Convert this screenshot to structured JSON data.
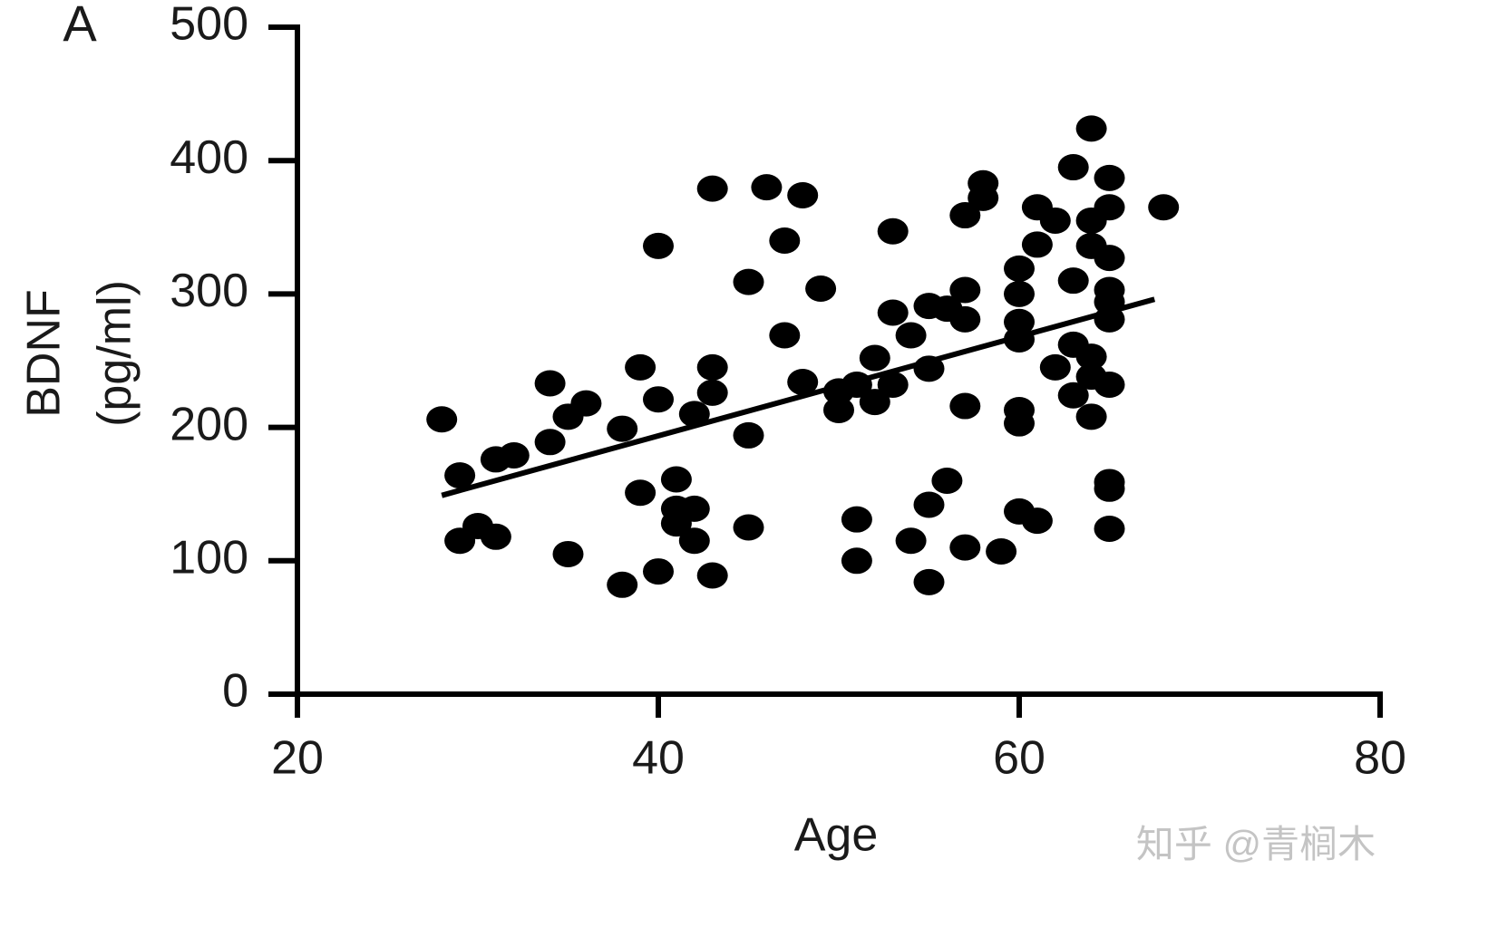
{
  "chart_data": {
    "type": "scatter",
    "panel_label": "A",
    "xlabel": "Age",
    "ylabel": [
      "BDNF",
      "(pg/ml)"
    ],
    "watermark": "知乎 @青榈木",
    "color": "#000000",
    "x": [
      28,
      29,
      29,
      30,
      31,
      31,
      32,
      34,
      34,
      35,
      35,
      36,
      38,
      38,
      39,
      39,
      40,
      40,
      40,
      41,
      41,
      41,
      42,
      42,
      42,
      43,
      43,
      43,
      43,
      45,
      45,
      45,
      46,
      47,
      47,
      48,
      48,
      49,
      50,
      50,
      51,
      51,
      51,
      52,
      52,
      53,
      53,
      53,
      54,
      54,
      55,
      55,
      55,
      55,
      56,
      56,
      57,
      57,
      57,
      57,
      57,
      58,
      58,
      59,
      60,
      60,
      60,
      60,
      60,
      60,
      60,
      61,
      61,
      61,
      62,
      62,
      63,
      63,
      63,
      63,
      64,
      64,
      64,
      64,
      64,
      64,
      65,
      65,
      65,
      65,
      65,
      65,
      65,
      65,
      65,
      65,
      68
    ],
    "values": [
      206,
      164,
      115,
      126,
      176,
      118,
      179,
      233,
      189,
      208,
      105,
      218,
      199,
      82,
      245,
      151,
      336,
      221,
      92,
      161,
      139,
      128,
      210,
      139,
      115,
      379,
      245,
      226,
      89,
      309,
      194,
      125,
      380,
      340,
      269,
      374,
      234,
      304,
      227,
      213,
      232,
      131,
      100,
      252,
      219,
      347,
      286,
      232,
      269,
      115,
      291,
      244,
      142,
      84,
      289,
      160,
      359,
      303,
      281,
      216,
      110,
      383,
      372,
      107,
      319,
      300,
      279,
      266,
      213,
      203,
      137,
      365,
      337,
      130,
      355,
      245,
      395,
      310,
      262,
      224,
      424,
      355,
      336,
      253,
      238,
      208,
      387,
      365,
      327,
      303,
      294,
      281,
      232,
      159,
      154,
      124,
      365
    ],
    "fit": {
      "x": [
        28,
        67.5
      ],
      "y": [
        149,
        296
      ]
    },
    "xlim": [
      20,
      80
    ],
    "xticks": [
      20,
      40,
      60,
      80
    ],
    "ylim": [
      0,
      500
    ],
    "yticks": [
      0,
      100,
      200,
      300,
      400,
      500
    ]
  }
}
